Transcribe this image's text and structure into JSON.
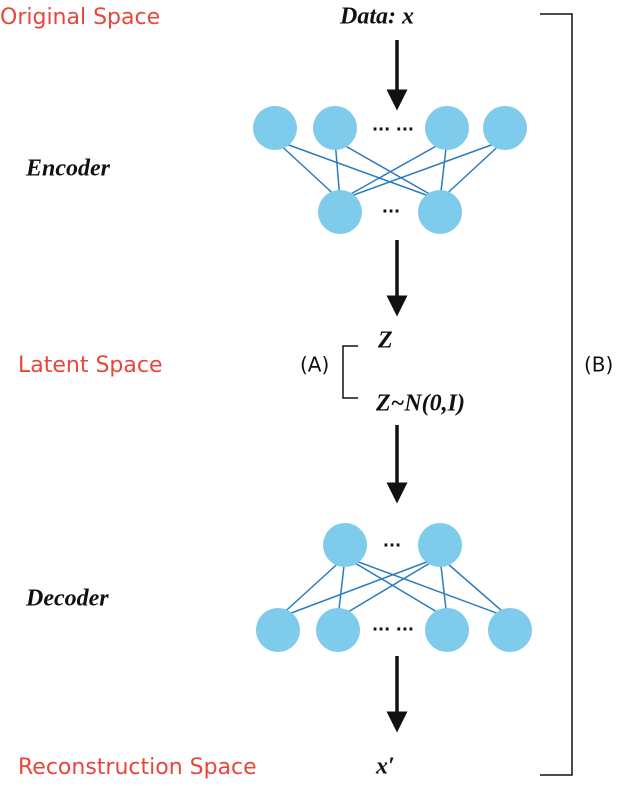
{
  "spaces": {
    "original": "Original Space",
    "latent": "Latent Space",
    "reconstruction": "Reconstruction Space"
  },
  "stages": {
    "encoder": "Encoder",
    "decoder": "Decoder"
  },
  "symbols": {
    "input": "Data: x",
    "z": "Z",
    "prior": "Z~N(0,I)",
    "output": "x′"
  },
  "brackets": {
    "a": "(A)",
    "b": "(B)"
  },
  "ellipses": {
    "encoder_top": "... ...",
    "encoder_bottom": "...",
    "decoder_top": "...",
    "decoder_bottom": "... ..."
  }
}
